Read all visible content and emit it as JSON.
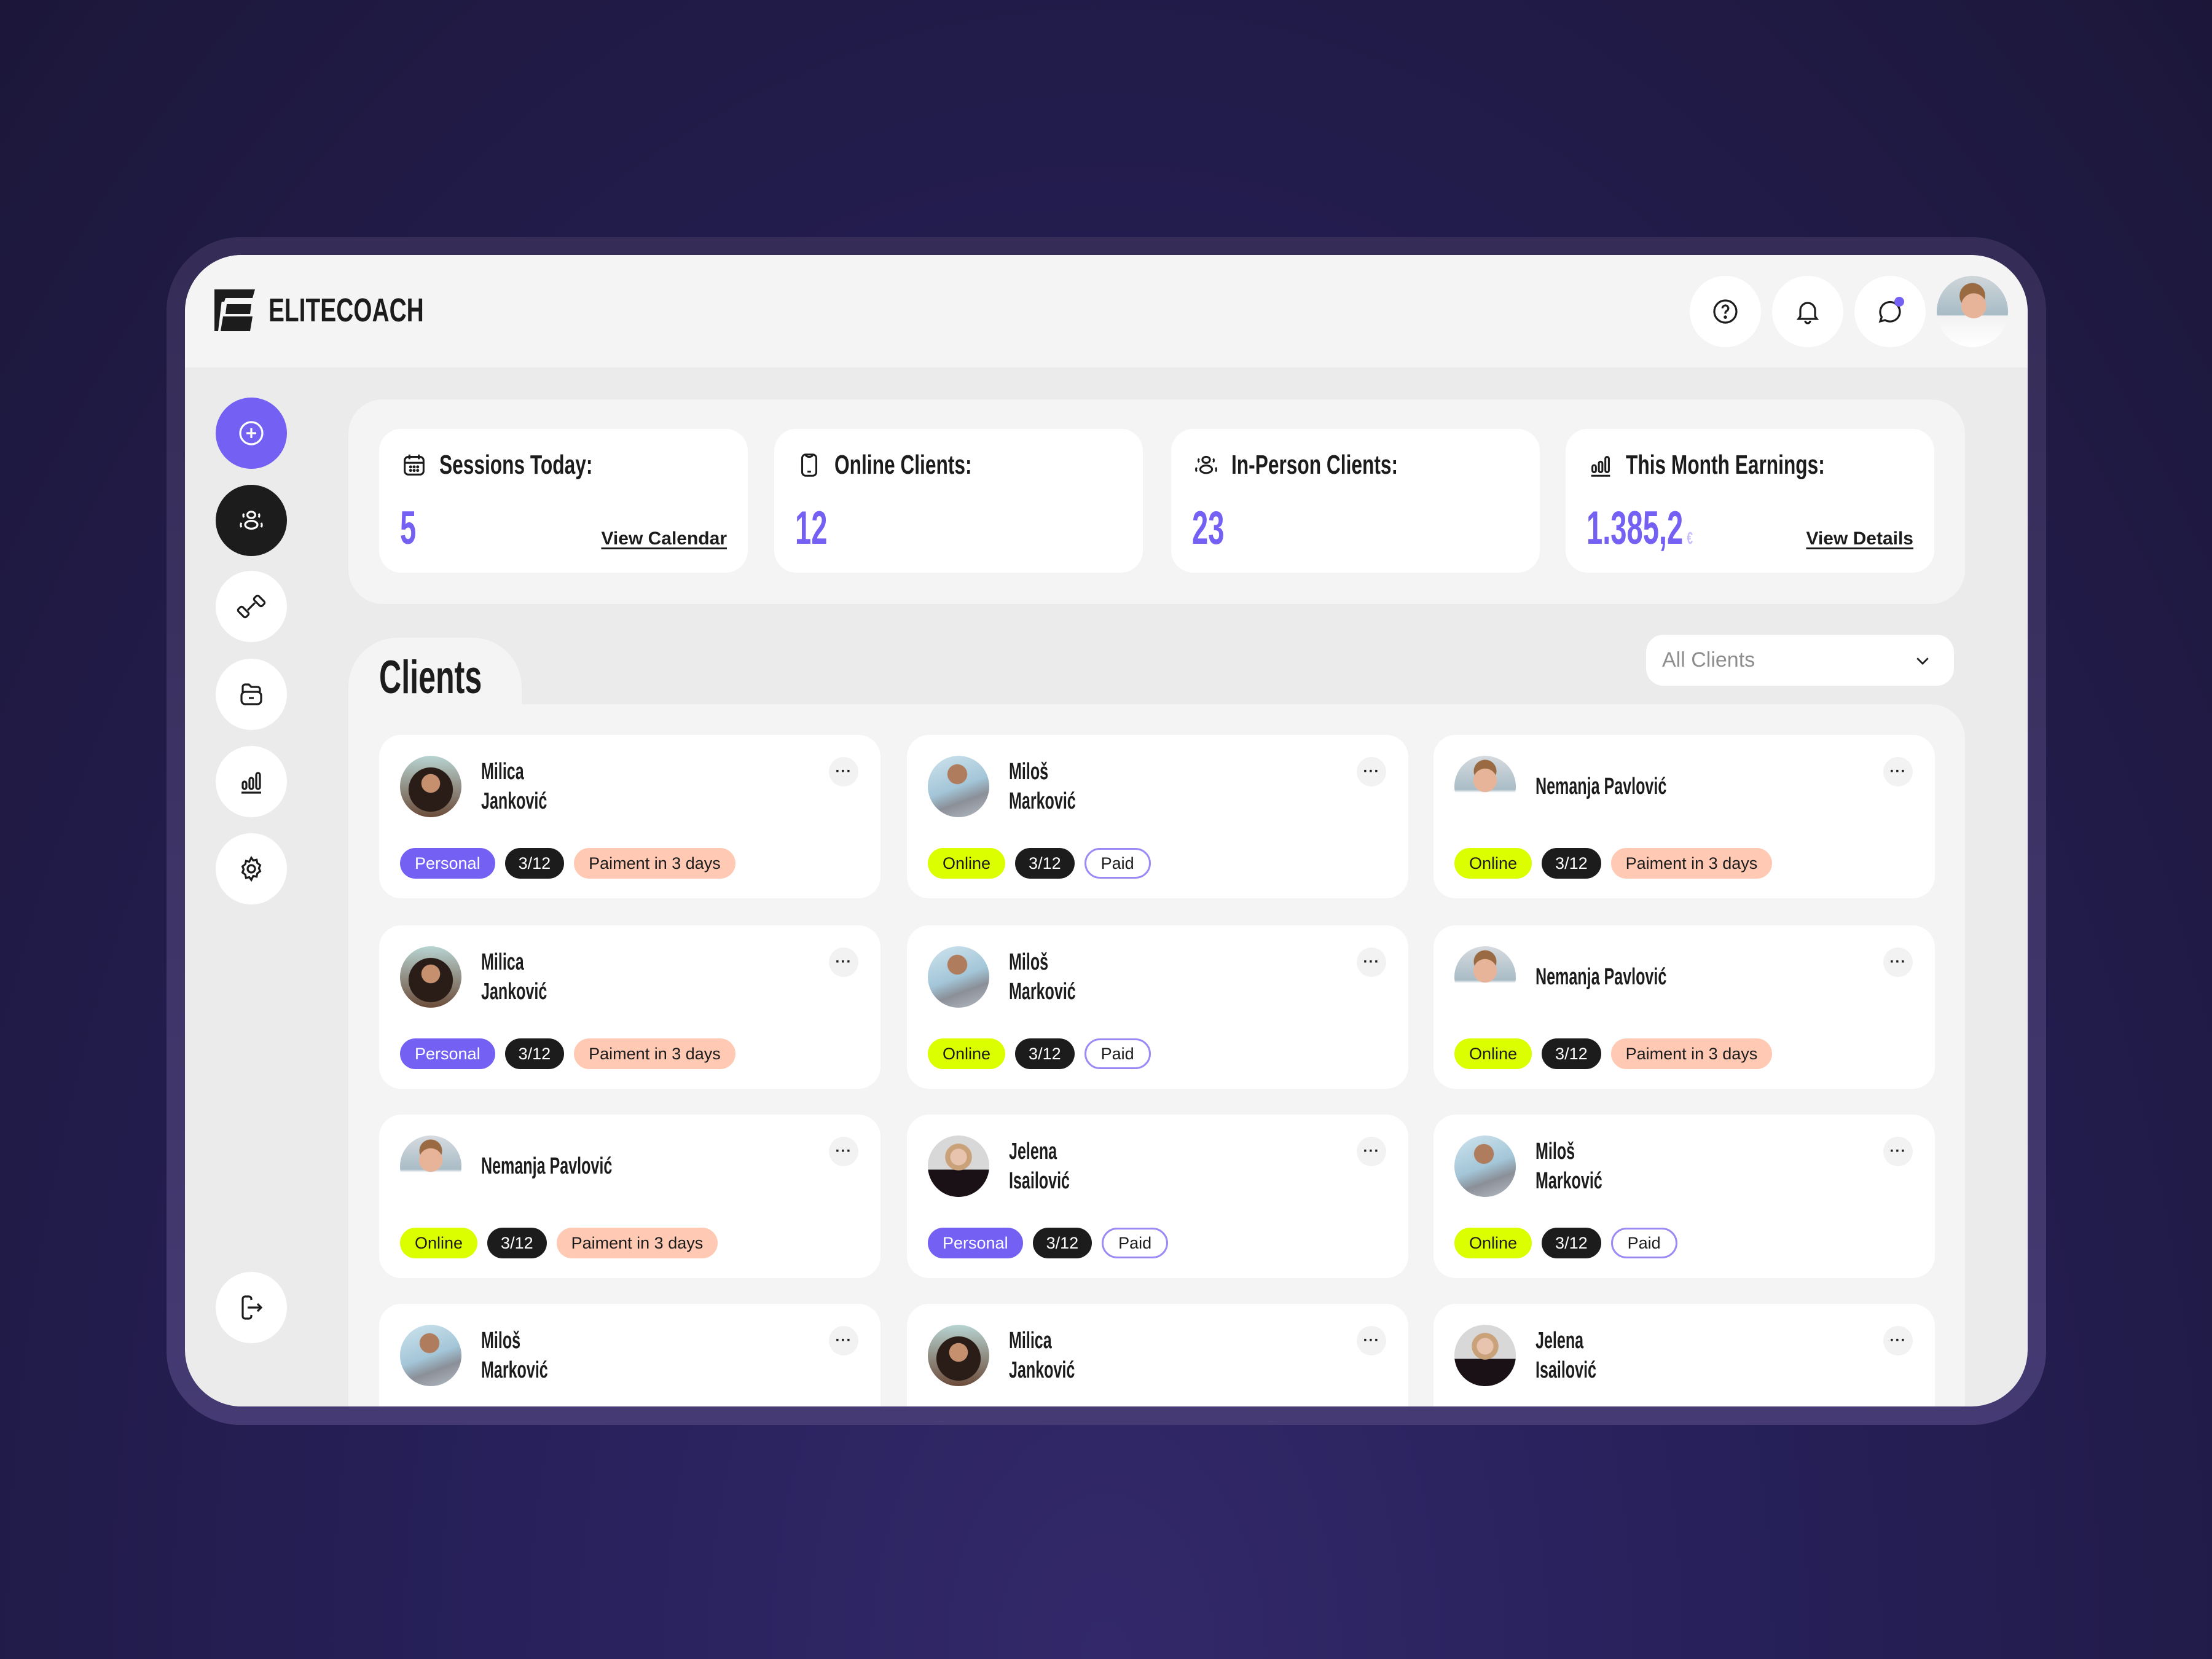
{
  "app": {
    "brand": "ELITECOACH"
  },
  "header": {
    "actions": [
      {
        "name": "help-icon",
        "label": "Help"
      },
      {
        "name": "bell-icon",
        "label": "Notifications"
      },
      {
        "name": "chat-icon",
        "label": "Messages",
        "has_badge": true
      }
    ],
    "user_avatar": "Profile"
  },
  "sidebar": {
    "items": [
      {
        "name": "add",
        "icon": "plus-circle-icon",
        "state": "primary"
      },
      {
        "name": "clients",
        "icon": "users-icon",
        "state": "active"
      },
      {
        "name": "workouts",
        "icon": "dumbbell-icon",
        "state": "default"
      },
      {
        "name": "files",
        "icon": "folder-icon",
        "state": "default"
      },
      {
        "name": "analytics",
        "icon": "bar-chart-icon",
        "state": "default"
      },
      {
        "name": "settings",
        "icon": "gear-icon",
        "state": "default"
      }
    ],
    "logout": {
      "icon": "logout-icon"
    }
  },
  "stats": [
    {
      "title": "Sessions Today:",
      "icon": "calendar-icon",
      "value": "5",
      "link": "View Calendar"
    },
    {
      "title": "Online Clients:",
      "icon": "phone-icon",
      "value": "12"
    },
    {
      "title": "In-Person Clients:",
      "icon": "users-icon",
      "value": "23"
    },
    {
      "title": "This Month Earnings:",
      "icon": "bar-chart-icon",
      "value": "1.385,2",
      "currency": "€",
      "link": "View Details"
    }
  ],
  "clients": {
    "title": "Clients",
    "filter": {
      "selected": "All Clients"
    },
    "more_label": "···",
    "cards": [
      {
        "first": "Milica",
        "last": "Janković",
        "avatar": "milica",
        "type": "Personal",
        "sessions": "3/12",
        "payment": "Paiment in 3 days",
        "payment_state": "due"
      },
      {
        "first": "Miloš",
        "last": "Marković",
        "avatar": "milos",
        "type": "Online",
        "sessions": "3/12",
        "payment": "Paid",
        "payment_state": "paid"
      },
      {
        "first": "Nemanja Pavlović",
        "last": "",
        "avatar": "nemanja",
        "type": "Online",
        "sessions": "3/12",
        "payment": "Paiment in 3 days",
        "payment_state": "due"
      },
      {
        "first": "Milica",
        "last": "Janković",
        "avatar": "milica",
        "type": "Personal",
        "sessions": "3/12",
        "payment": "Paiment in 3 days",
        "payment_state": "due"
      },
      {
        "first": "Miloš",
        "last": "Marković",
        "avatar": "milos",
        "type": "Online",
        "sessions": "3/12",
        "payment": "Paid",
        "payment_state": "paid"
      },
      {
        "first": "Nemanja Pavlović",
        "last": "",
        "avatar": "nemanja",
        "type": "Online",
        "sessions": "3/12",
        "payment": "Paiment in 3 days",
        "payment_state": "due"
      },
      {
        "first": "Nemanja Pavlović",
        "last": "",
        "avatar": "nemanja",
        "type": "Online",
        "sessions": "3/12",
        "payment": "Paiment in 3 days",
        "payment_state": "due"
      },
      {
        "first": "Jelena",
        "last": "Isailović",
        "avatar": "jelena",
        "type": "Personal",
        "sessions": "3/12",
        "payment": "Paid",
        "payment_state": "paid"
      },
      {
        "first": "Miloš",
        "last": "Marković",
        "avatar": "milos",
        "type": "Online",
        "sessions": "3/12",
        "payment": "Paid",
        "payment_state": "paid"
      },
      {
        "first": "Miloš",
        "last": "Marković",
        "avatar": "milos"
      },
      {
        "first": "Milica",
        "last": "Janković",
        "avatar": "milica"
      },
      {
        "first": "Jelena",
        "last": "Isailović",
        "avatar": "jelena"
      }
    ]
  },
  "colors": {
    "accent": "#7461f4",
    "online": "#dcff00",
    "payment_due": "#ffc9b4",
    "dark": "#1c1c1c",
    "background": "#1c1739"
  }
}
